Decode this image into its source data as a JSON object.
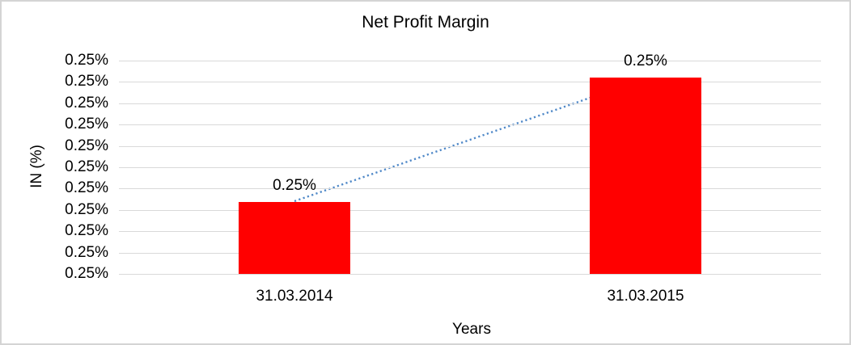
{
  "frame": {
    "border_color": "#D4D4D4",
    "background": "#FFFFFF"
  },
  "chart_data": {
    "type": "bar",
    "title": "Net Profit Margin",
    "categories": [
      "31.03.2014",
      "31.03.2015"
    ],
    "series": [
      {
        "name": "Net Profit Margin",
        "values_display": [
          "0.25%",
          "0.25%"
        ],
        "bar_height_fractions": [
          0.337,
          0.92
        ]
      }
    ],
    "xlabel": "Years",
    "ylabel": "IN (%)",
    "y_tick_labels": [
      "0.25%",
      "0.25%",
      "0.25%",
      "0.25%",
      "0.25%",
      "0.25%",
      "0.25%",
      "0.25%",
      "0.25%",
      "0.25%",
      "0.25%"
    ],
    "grid": true,
    "legend": "none",
    "bar_color": "#FF0000",
    "gridline_color": "#D9D9D9",
    "trendline": {
      "type": "linear",
      "style": "dotted",
      "color": "#5089C8",
      "from": "top center of 31.03.2014 bar",
      "to": "top center of 31.03.2015 bar"
    }
  }
}
